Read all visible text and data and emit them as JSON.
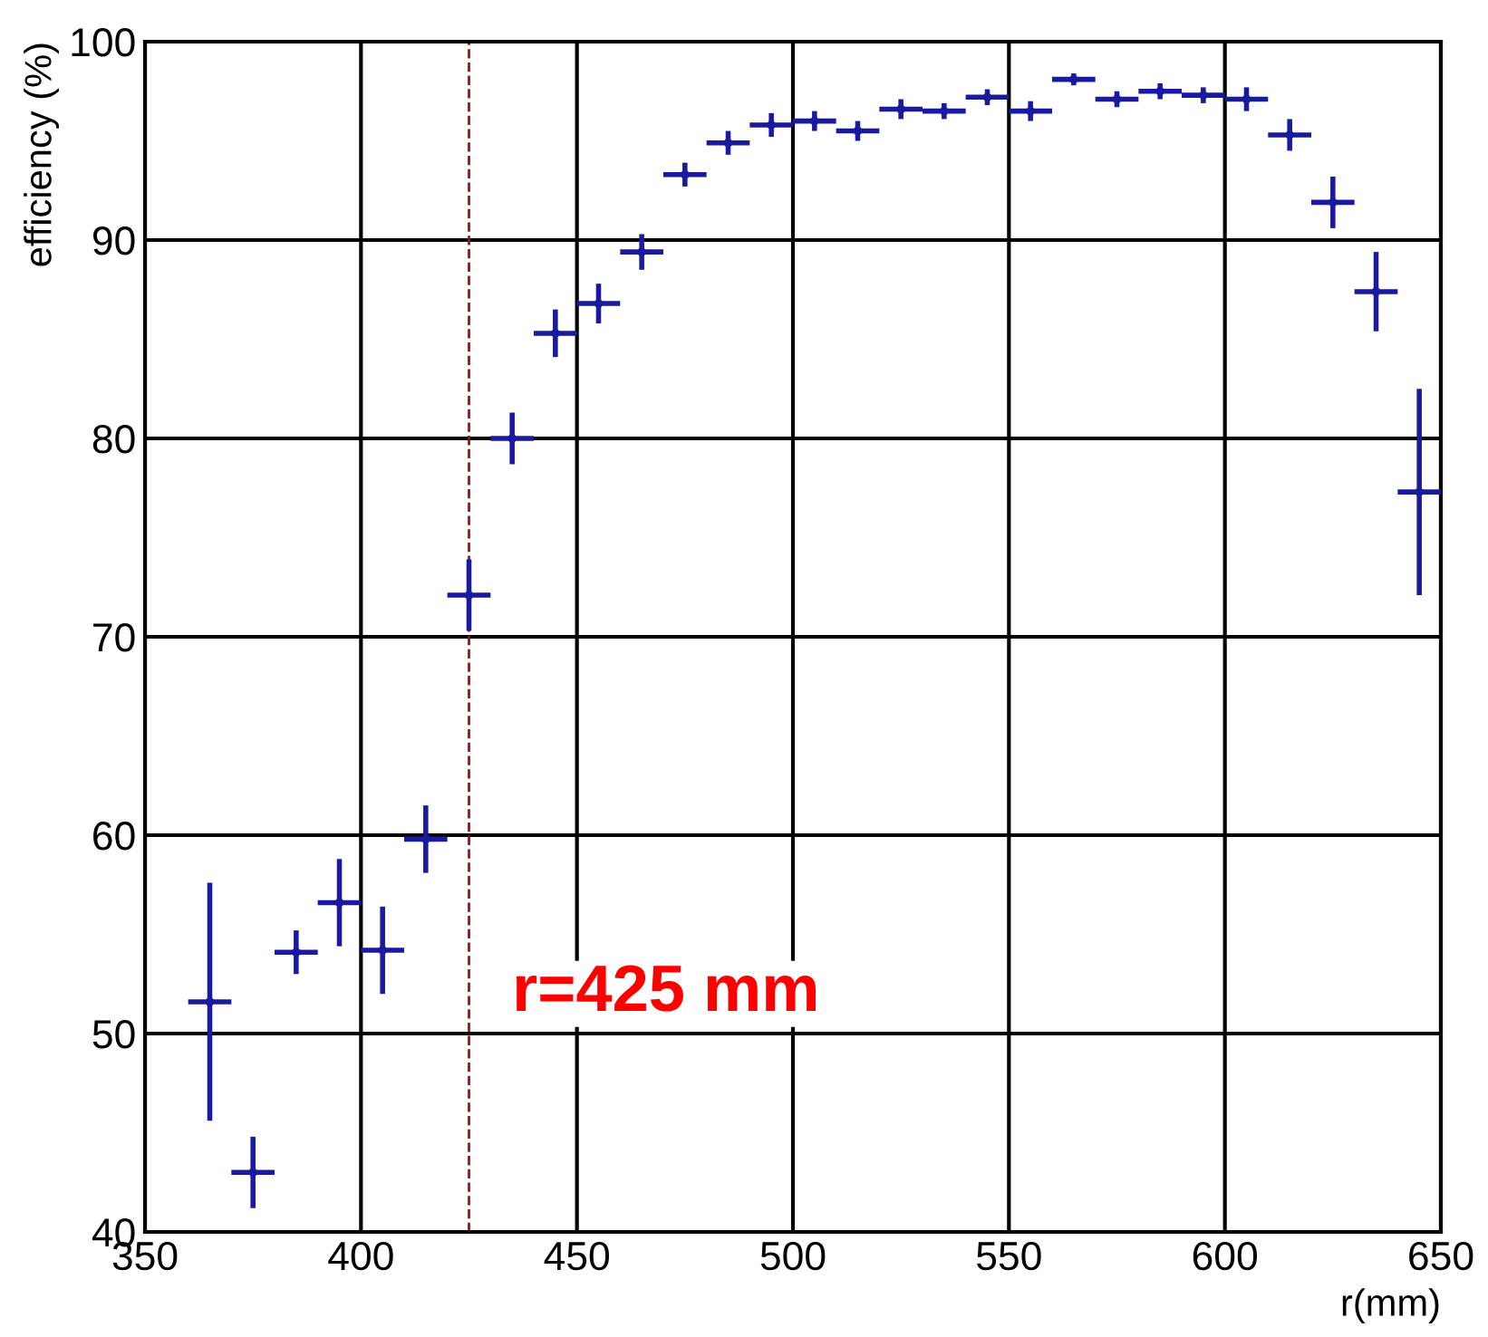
{
  "chart_data": {
    "type": "scatter",
    "xlabel": "r(mm)",
    "ylabel": "efficiency (%)",
    "xlim": [
      350,
      650
    ],
    "ylim": [
      40,
      100
    ],
    "xticks": [
      350,
      400,
      450,
      500,
      550,
      600,
      650
    ],
    "yticks": [
      40,
      50,
      60,
      70,
      80,
      90,
      100
    ],
    "grid": true,
    "series": [
      {
        "color": "#1a1aa0",
        "x": [
          365,
          375,
          385,
          395,
          405,
          415,
          425,
          435,
          445,
          455,
          465,
          475,
          485,
          495,
          505,
          515,
          525,
          535,
          545,
          555,
          565,
          575,
          585,
          595,
          605,
          615,
          625,
          635,
          645
        ],
        "values": [
          51.6,
          43.0,
          54.1,
          56.6,
          54.2,
          59.8,
          72.1,
          80.0,
          85.3,
          86.8,
          89.4,
          93.3,
          94.9,
          95.8,
          96.0,
          95.5,
          96.6,
          96.5,
          97.2,
          96.5,
          98.1,
          97.1,
          97.5,
          97.3,
          97.1,
          95.3,
          91.9,
          87.4,
          77.3
        ],
        "errors": [
          6.0,
          1.8,
          1.1,
          2.2,
          2.2,
          1.7,
          1.8,
          1.3,
          1.2,
          1.0,
          0.9,
          0.6,
          0.6,
          0.6,
          0.5,
          0.5,
          0.5,
          0.4,
          0.4,
          0.5,
          0.3,
          0.4,
          0.4,
          0.4,
          0.6,
          0.8,
          1.3,
          2.0,
          5.2
        ],
        "xerrors": [
          5,
          5,
          5,
          5,
          5,
          5,
          5,
          5,
          5,
          5,
          5,
          5,
          5,
          5,
          5,
          5,
          5,
          5,
          5,
          5,
          5,
          5,
          5,
          5,
          5,
          5,
          5,
          5,
          5
        ]
      }
    ],
    "ref_lines": [
      {
        "axis": "x",
        "value": 425,
        "label": "r=425 mm",
        "color": "#8b1a1a",
        "line_style": "dashed"
      }
    ]
  }
}
